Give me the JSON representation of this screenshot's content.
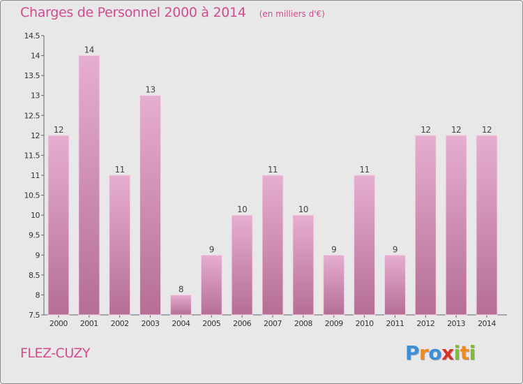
{
  "chart_data": {
    "type": "bar",
    "title": "Charges de Personnel 2000 à 2014",
    "subtitle": "(en milliers d'€)",
    "categories": [
      "2000",
      "2001",
      "2002",
      "2003",
      "2004",
      "2005",
      "2006",
      "2007",
      "2008",
      "2009",
      "2010",
      "2011",
      "2012",
      "2013",
      "2014"
    ],
    "values": [
      12,
      14,
      11,
      13,
      8,
      9,
      10,
      11,
      10,
      9,
      11,
      9,
      12,
      12,
      12
    ],
    "value_labels": [
      "12",
      "14",
      "11",
      "13",
      "8",
      "9",
      "10",
      "11",
      "10",
      "9",
      "11",
      "9",
      "12",
      "12",
      "12"
    ],
    "ylim": [
      7.5,
      14.5
    ],
    "yticks": [
      7.5,
      8,
      8.5,
      9,
      9.5,
      10,
      10.5,
      11,
      11.5,
      12,
      12.5,
      13,
      13.5,
      14,
      14.5
    ],
    "ytick_labels": [
      "7.5",
      "8",
      "8.5",
      "9",
      "9.5",
      "10",
      "10.5",
      "11",
      "11.5",
      "12",
      "12.5",
      "13",
      "13.5",
      "14",
      "14.5"
    ],
    "xlabel": "",
    "ylabel": "",
    "grid": false,
    "bar_color_top": "#e6aed0",
    "bar_color_bottom": "#b56e95",
    "axis_color": "#666666"
  },
  "footer": {
    "commune": "FLEZ-CUZY",
    "brand_letters": [
      "P",
      "r",
      "o",
      "x",
      "i",
      "t",
      "i"
    ],
    "brand_colors": [
      "#3a8fd8",
      "#f08a1c",
      "#3a8fd8",
      "#d8302a",
      "#7cbf2a",
      "#f08a1c",
      "#7cbf2a"
    ]
  },
  "colors": {
    "accent": "#d14b8f",
    "background": "#e8e8e8"
  }
}
